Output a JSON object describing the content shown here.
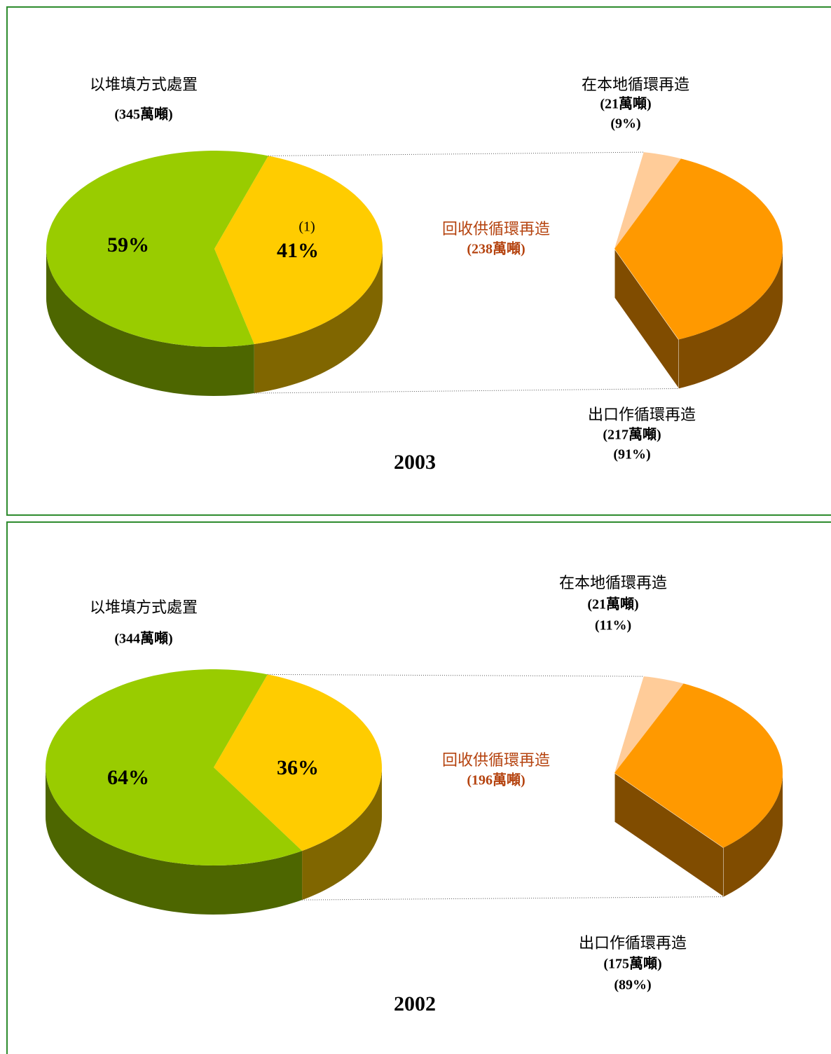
{
  "chart_data": [
    {
      "type": "pie-of-pie",
      "title": "2003",
      "annotation": "(1)",
      "primary": {
        "categories": [
          "以堆填方式處置",
          "回收供循環再造"
        ],
        "values": [
          59,
          41
        ],
        "value_labels": [
          "59%",
          "41%"
        ],
        "amounts": [
          345,
          238
        ],
        "amount_labels": [
          "(345萬噸)",
          "(238萬噸)"
        ],
        "colors": [
          "#99cc00",
          "#ffcc00"
        ],
        "side_colors": [
          "#4d6600",
          "#806600"
        ]
      },
      "secondary": {
        "categories": [
          "在本地循環再造",
          "出口作循環再造"
        ],
        "values": [
          9,
          91
        ],
        "value_labels": [
          "(9%)",
          "(91%)"
        ],
        "amounts": [
          21,
          217
        ],
        "amount_labels": [
          "(21萬噸)",
          "(217萬噸)"
        ],
        "colors": [
          "#ffcc99",
          "#ff9900"
        ],
        "side_colors": [
          "#804c00",
          "#804c00"
        ]
      }
    },
    {
      "type": "pie-of-pie",
      "title": "2002",
      "primary": {
        "categories": [
          "以堆填方式處置",
          "回收供循環再造"
        ],
        "values": [
          64,
          36
        ],
        "value_labels": [
          "64%",
          "36%"
        ],
        "amounts": [
          344,
          196
        ],
        "amount_labels": [
          "(344萬噸)",
          "(196萬噸)"
        ],
        "colors": [
          "#99cc00",
          "#ffcc00"
        ],
        "side_colors": [
          "#4d6600",
          "#806600"
        ]
      },
      "secondary": {
        "categories": [
          "在本地循環再造",
          "出口作循環再造"
        ],
        "values": [
          11,
          89
        ],
        "value_labels": [
          "(11%)",
          "(89%)"
        ],
        "amounts": [
          21,
          175
        ],
        "amount_labels": [
          "(21萬噸)",
          "(175萬噸)"
        ],
        "colors": [
          "#ffcc99",
          "#ff9900"
        ],
        "side_colors": [
          "#804c00",
          "#804c00"
        ]
      }
    }
  ]
}
